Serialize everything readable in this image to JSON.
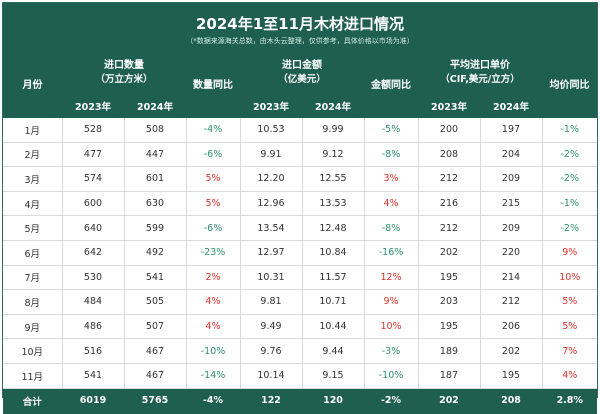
{
  "title": "2024年1至11月木材进口情况",
  "note": "（*数据来源海关总数，由木头云整理，仅供参考，具体价格以市场为准）",
  "headers": {
    "month": "月份",
    "volume": "进口数量",
    "volume_unit": "（万立方米）",
    "volume_yoy": "数量同比",
    "amount": "进口金额",
    "amount_unit": "（亿美元）",
    "amount_yoy": "金额同比",
    "price": "平均进口单价",
    "price_unit": "（CIF,美元/立方）",
    "price_yoy": "均价同比",
    "y2023": "2023年",
    "y2024": "2024年"
  },
  "rows": [
    {
      "month": "1月",
      "v23": "528",
      "v24": "508",
      "vy": "-4%",
      "a23": "10.53",
      "a24": "9.99",
      "ay": "-5%",
      "p23": "200",
      "p24": "197",
      "py": "-1%"
    },
    {
      "month": "2月",
      "v23": "477",
      "v24": "447",
      "vy": "-6%",
      "a23": "9.91",
      "a24": "9.12",
      "ay": "-8%",
      "p23": "208",
      "p24": "204",
      "py": "-2%"
    },
    {
      "month": "3月",
      "v23": "574",
      "v24": "601",
      "vy": "5%",
      "a23": "12.20",
      "a24": "12.55",
      "ay": "3%",
      "p23": "212",
      "p24": "209",
      "py": "-2%"
    },
    {
      "month": "4月",
      "v23": "600",
      "v24": "630",
      "vy": "5%",
      "a23": "12.96",
      "a24": "13.53",
      "ay": "4%",
      "p23": "216",
      "p24": "215",
      "py": "-1%"
    },
    {
      "month": "5月",
      "v23": "640",
      "v24": "599",
      "vy": "-6%",
      "a23": "13.54",
      "a24": "12.48",
      "ay": "-8%",
      "p23": "212",
      "p24": "209",
      "py": "-2%"
    },
    {
      "month": "6月",
      "v23": "642",
      "v24": "492",
      "vy": "-23%",
      "a23": "12.97",
      "a24": "10.84",
      "ay": "-16%",
      "p23": "202",
      "p24": "220",
      "py": "9%"
    },
    {
      "month": "7月",
      "v23": "530",
      "v24": "541",
      "vy": "2%",
      "a23": "10.31",
      "a24": "11.57",
      "ay": "12%",
      "p23": "195",
      "p24": "214",
      "py": "10%"
    },
    {
      "month": "8月",
      "v23": "484",
      "v24": "505",
      "vy": "4%",
      "a23": "9.81",
      "a24": "10.71",
      "ay": "9%",
      "p23": "203",
      "p24": "212",
      "py": "5%"
    },
    {
      "month": "9月",
      "v23": "486",
      "v24": "507",
      "vy": "4%",
      "a23": "9.49",
      "a24": "10.44",
      "ay": "10%",
      "p23": "195",
      "p24": "206",
      "py": "5%"
    },
    {
      "month": "10月",
      "v23": "516",
      "v24": "467",
      "vy": "-10%",
      "a23": "9.76",
      "a24": "9.44",
      "ay": "-3%",
      "p23": "189",
      "p24": "202",
      "py": "7%"
    },
    {
      "month": "11月",
      "v23": "541",
      "v24": "467",
      "vy": "-14%",
      "a23": "10.14",
      "a24": "9.15",
      "ay": "-10%",
      "p23": "187",
      "p24": "195",
      "py": "4%"
    }
  ],
  "total": {
    "month": "合计",
    "v23": "6019",
    "v24": "5765",
    "vy": "-4%",
    "a23": "122",
    "a24": "120",
    "ay": "-2%",
    "p23": "202",
    "p24": "208",
    "py": "2.8%"
  },
  "colors": {
    "header_bg": "#1f5f50",
    "negative": "#2f8f6f",
    "positive": "#e0332b"
  }
}
